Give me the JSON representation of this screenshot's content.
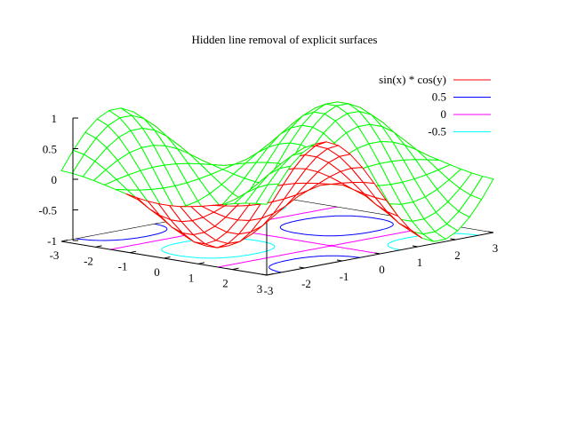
{
  "chart_data": {
    "type": "surface3d",
    "title": "Hidden line removal of explicit surfaces",
    "function": "sin(x) * cos(y)",
    "x_range": [
      -3,
      3
    ],
    "y_range": [
      -3,
      3
    ],
    "z_range": [
      -1,
      1
    ],
    "samples": 20,
    "z_ticks": [
      {
        "value": 1,
        "label": "1"
      },
      {
        "value": 0.5,
        "label": "0.5"
      },
      {
        "value": 0,
        "label": "0"
      },
      {
        "value": -0.5,
        "label": "-0.5"
      },
      {
        "value": -1,
        "label": "-1"
      }
    ],
    "x_ticks": [
      {
        "value": -3,
        "label": "-3"
      },
      {
        "value": -2,
        "label": "-2"
      },
      {
        "value": -1,
        "label": "-1"
      },
      {
        "value": 0,
        "label": "0"
      },
      {
        "value": 1,
        "label": "1"
      },
      {
        "value": 2,
        "label": "2"
      },
      {
        "value": 3,
        "label": "3"
      }
    ],
    "y_ticks": [
      {
        "value": 3,
        "label": "3"
      },
      {
        "value": 2,
        "label": "2"
      },
      {
        "value": 1,
        "label": "1"
      },
      {
        "value": 0,
        "label": "0"
      },
      {
        "value": -1,
        "label": "-1"
      },
      {
        "value": -2,
        "label": "-2"
      },
      {
        "value": -3,
        "label": "-3"
      }
    ],
    "legend": {
      "placement": "top-right",
      "entries": [
        {
          "label": "sin(x) * cos(y)",
          "color": "#ff0000"
        },
        {
          "label": "0.5",
          "color": "#0000ff"
        },
        {
          "label": "0",
          "color": "#ff00ff"
        },
        {
          "label": "-0.5",
          "color": "#00ffff"
        }
      ]
    },
    "contour_levels": [
      {
        "level": 0.5,
        "color": "#0000ff"
      },
      {
        "level": 0,
        "color": "#ff00ff"
      },
      {
        "level": -0.5,
        "color": "#00ffff"
      }
    ],
    "top_color": "#ff0000",
    "bottom_color": "#00ff00"
  }
}
